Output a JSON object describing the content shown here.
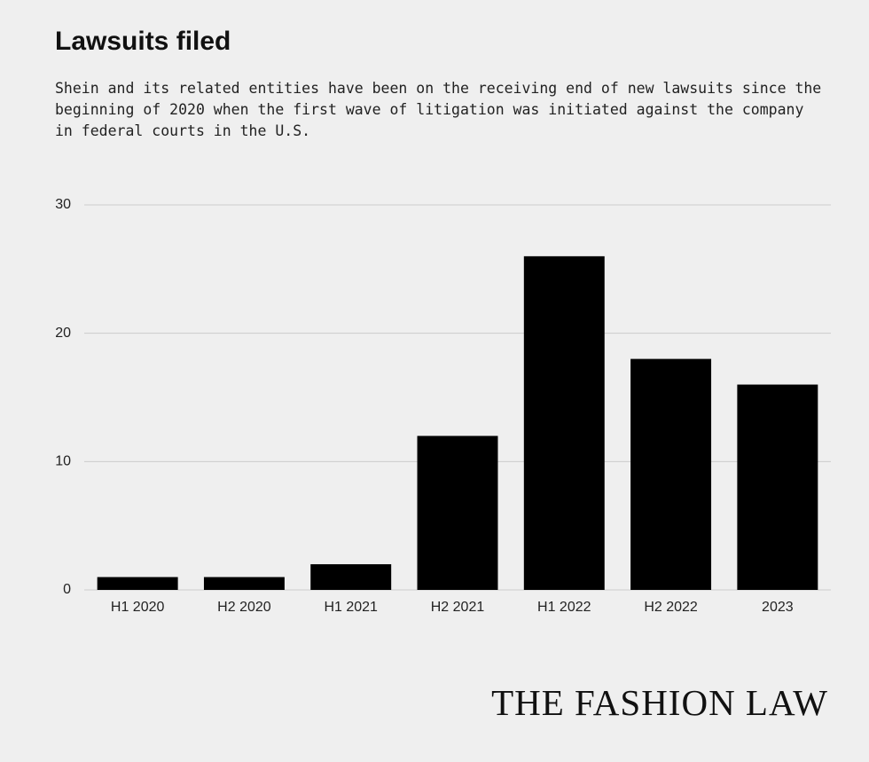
{
  "chart_data": {
    "type": "bar",
    "title": "Lawsuits filed",
    "subtitle": "Shein and its related entities have been on the receiving end of new lawsuits since the beginning of 2020 when the first wave of litigation was initiated against the company in federal courts in the U.S.",
    "categories": [
      "H1 2020",
      "H2 2020",
      "H1 2021",
      "H2 2021",
      "H1 2022",
      "H2 2022",
      "2023"
    ],
    "values": [
      1,
      1,
      2,
      12,
      26,
      18,
      16
    ],
    "color": "#000000",
    "ylim": [
      0,
      30
    ],
    "yticks": [
      0,
      10,
      20,
      30
    ],
    "grid": true
  },
  "brand": "THE FASHION LAW"
}
